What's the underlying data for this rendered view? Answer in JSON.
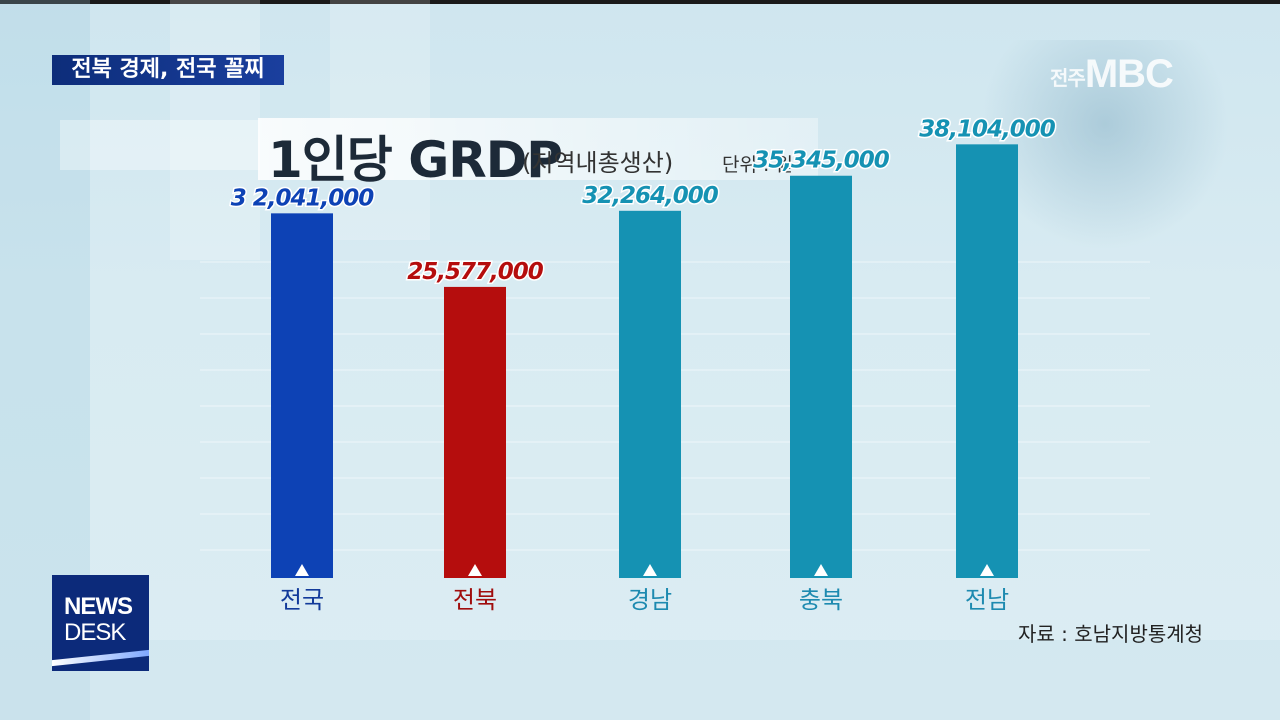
{
  "headline": "전북 경제, 전국 꼴찌",
  "title": {
    "main": "1인당 GRDP",
    "sub": "(지역내총생산)",
    "unit": "단위 : 원"
  },
  "logo": {
    "prefix": "전주",
    "brand": "MBC"
  },
  "source": "자료 : 호남지방통계청",
  "news_desk": {
    "line1": "NEWS",
    "line2": "DESK"
  },
  "chart_data": {
    "type": "bar",
    "categories": [
      "전국",
      "전북",
      "경남",
      "충북",
      "전남"
    ],
    "values": [
      32041000,
      25577000,
      32264000,
      35345000,
      38104000
    ],
    "value_labels": [
      "3 2,041,000",
      "25,577,000",
      "32,264,000",
      "35,345,000",
      "38,104,000"
    ],
    "colors": [
      "#0d42b5",
      "#b50d0d",
      "#1592b3",
      "#1592b3",
      "#1592b3"
    ],
    "label_colors": [
      "#0d42b5",
      "#b50d0d",
      "#1592b3",
      "#1592b3",
      "#1592b3"
    ],
    "category_colors": [
      "#123a9a",
      "#a00d0d",
      "#1d8ab0",
      "#1d8ab0",
      "#1d8ab0"
    ],
    "ylim": [
      0,
      42000000
    ],
    "grid": true
  }
}
